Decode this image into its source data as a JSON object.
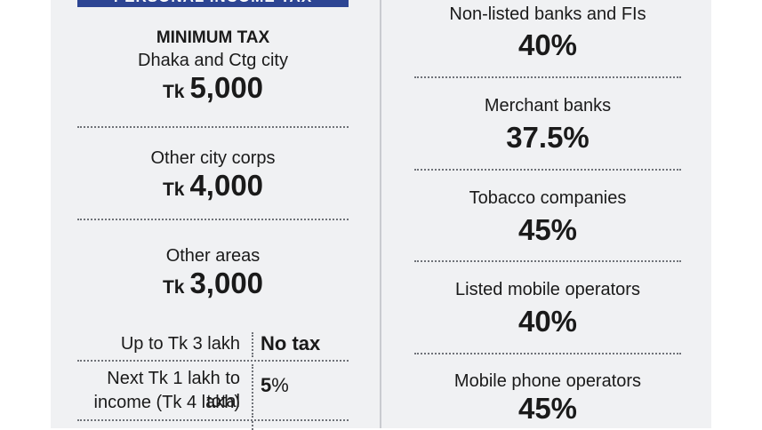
{
  "banner": "PERSONAL INCOME TAX",
  "minimum_tax": {
    "heading": "MINIMUM TAX",
    "items": [
      {
        "area": "Dhaka and Ctg city",
        "currency": "Tk",
        "amount": "5,000"
      },
      {
        "area": "Other city corps",
        "currency": "Tk",
        "amount": "4,000"
      },
      {
        "area": "Other areas",
        "currency": "Tk",
        "amount": "3,000"
      }
    ]
  },
  "slabs": [
    {
      "label": "Up to Tk 3 lakh",
      "rate": "No tax"
    },
    {
      "label_line1": "Next Tk 1 lakh to total",
      "label_line2": "income (Tk 4 lakh)",
      "rate_num": "5",
      "rate_pct": "%"
    }
  ],
  "corporate": [
    {
      "sector": "Non-listed banks and FIs",
      "rate": "40%"
    },
    {
      "sector": "Merchant banks",
      "rate": "37.5%"
    },
    {
      "sector": "Tobacco companies",
      "rate": "45%"
    },
    {
      "sector": "Listed mobile operators",
      "rate": "40%"
    },
    {
      "sector": "Mobile phone operators",
      "rate": "45%"
    }
  ]
}
